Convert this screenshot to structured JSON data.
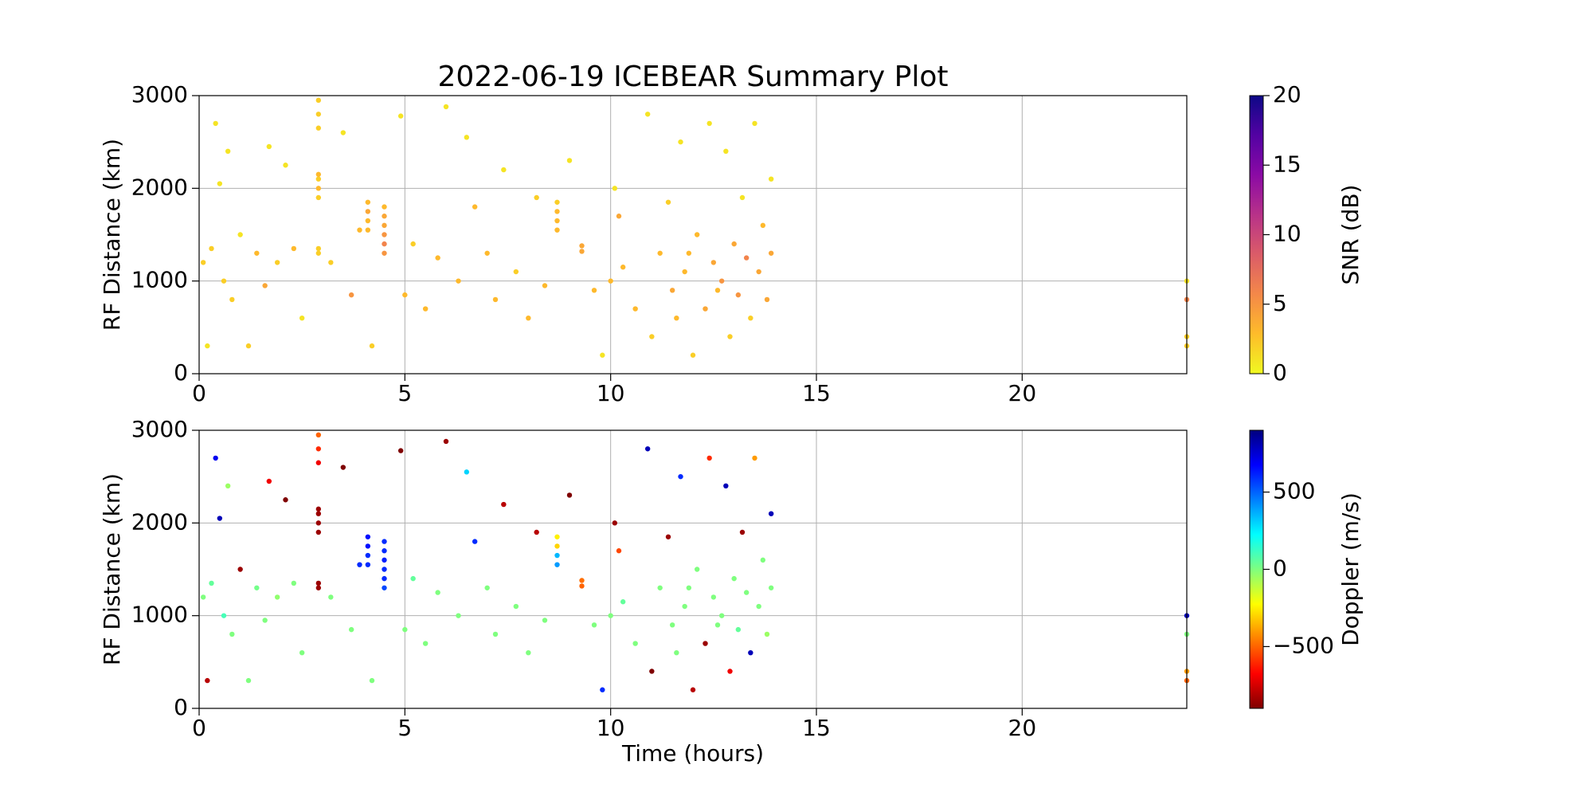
{
  "chart_data": [
    {
      "type": "scatter",
      "title": "2022-06-19 ICEBEAR Summary Plot",
      "ylabel": "RF Distance (km)",
      "xlim": [
        0,
        24
      ],
      "ylim": [
        0,
        3000
      ],
      "xticks": [
        0,
        5,
        10,
        15,
        20
      ],
      "yticks": [
        0,
        1000,
        2000,
        3000
      ],
      "grid": true,
      "x": [
        0.1,
        0.2,
        0.3,
        0.4,
        0.5,
        0.6,
        0.7,
        0.8,
        1.0,
        1.2,
        1.4,
        1.6,
        1.7,
        1.9,
        2.1,
        2.3,
        2.5,
        2.9,
        2.9,
        2.9,
        2.9,
        2.9,
        2.9,
        2.9,
        2.9,
        2.9,
        3.2,
        3.5,
        3.7,
        3.9,
        4.1,
        4.1,
        4.1,
        4.1,
        4.5,
        4.5,
        4.5,
        4.5,
        4.5,
        4.5,
        4.2,
        4.9,
        5.0,
        5.2,
        5.5,
        5.8,
        6.0,
        6.3,
        6.5,
        6.7,
        7.0,
        7.2,
        7.4,
        7.7,
        8.0,
        8.2,
        8.4,
        8.7,
        8.7,
        8.7,
        8.7,
        9.0,
        9.3,
        9.3,
        9.6,
        9.8,
        10.0,
        10.1,
        10.2,
        10.3,
        10.6,
        10.9,
        11.0,
        11.2,
        11.4,
        11.5,
        11.7,
        11.8,
        12.0,
        12.1,
        12.3,
        12.4,
        12.5,
        12.7,
        12.8,
        12.9,
        13.0,
        13.1,
        13.2,
        13.3,
        13.4,
        13.5,
        13.6,
        13.7,
        13.8,
        13.9,
        13.9,
        11.9,
        12.6,
        11.6,
        24.0,
        24.0,
        24.0,
        24.0
      ],
      "y": [
        1200,
        300,
        1350,
        2700,
        2050,
        1000,
        2400,
        800,
        1500,
        300,
        1300,
        950,
        2450,
        1200,
        2250,
        1350,
        600,
        1300,
        1350,
        1900,
        2000,
        2100,
        2150,
        2650,
        2800,
        2950,
        1200,
        2600,
        850,
        1550,
        1550,
        1650,
        1750,
        1850,
        1300,
        1400,
        1500,
        1600,
        1700,
        1800,
        300,
        2780,
        850,
        1400,
        700,
        1250,
        2880,
        1000,
        2550,
        1800,
        1300,
        800,
        2200,
        1100,
        600,
        1900,
        950,
        1550,
        1650,
        1750,
        1850,
        2300,
        1320,
        1380,
        900,
        200,
        1000,
        2000,
        1700,
        1150,
        700,
        2800,
        400,
        1300,
        1850,
        900,
        2500,
        1100,
        200,
        1500,
        700,
        2700,
        1200,
        1000,
        2400,
        400,
        1400,
        850,
        1900,
        1250,
        600,
        2700,
        1100,
        1600,
        800,
        1300,
        2100,
        1300,
        900,
        600,
        300,
        400,
        800,
        1000
      ],
      "colors": [
        2,
        1,
        2,
        1,
        1,
        2,
        1,
        2,
        1,
        2,
        3,
        4,
        1,
        2,
        1,
        3,
        1,
        2,
        2,
        2,
        3,
        2,
        3,
        2,
        2,
        2,
        2,
        1,
        5,
        3,
        3,
        3,
        4,
        3,
        5,
        6,
        5,
        4,
        4,
        3,
        2,
        1,
        3,
        2,
        3,
        3,
        1,
        3,
        1,
        3,
        3,
        3,
        1,
        2,
        3,
        2,
        3,
        3,
        3,
        3,
        2,
        1,
        4,
        4,
        3,
        1,
        3,
        1,
        4,
        3,
        3,
        1,
        2,
        3,
        2,
        4,
        1,
        3,
        2,
        3,
        4,
        1,
        4,
        5,
        1,
        2,
        4,
        5,
        1,
        6,
        2,
        1,
        4,
        3,
        4,
        4,
        1,
        3,
        3,
        3,
        2,
        2,
        6,
        1
      ],
      "colorbar": {
        "label": "SNR (dB)",
        "colormap": "plasma_r",
        "lim": [
          0,
          20
        ],
        "ticks": [
          0,
          5,
          10,
          15,
          20
        ]
      }
    },
    {
      "type": "scatter",
      "ylabel": "RF Distance (km)",
      "xlabel": "Time (hours)",
      "xlim": [
        0,
        24
      ],
      "ylim": [
        0,
        3000
      ],
      "xticks": [
        0,
        5,
        10,
        15,
        20
      ],
      "yticks": [
        0,
        1000,
        2000,
        3000
      ],
      "grid": true,
      "x": [
        0.1,
        0.2,
        0.3,
        0.4,
        0.5,
        0.6,
        0.7,
        0.8,
        1.0,
        1.2,
        1.4,
        1.6,
        1.7,
        1.9,
        2.1,
        2.3,
        2.5,
        2.9,
        2.9,
        2.9,
        2.9,
        2.9,
        2.9,
        2.9,
        2.9,
        2.9,
        3.2,
        3.5,
        3.7,
        3.9,
        4.1,
        4.1,
        4.1,
        4.1,
        4.5,
        4.5,
        4.5,
        4.5,
        4.5,
        4.5,
        4.2,
        4.9,
        5.0,
        5.2,
        5.5,
        5.8,
        6.0,
        6.3,
        6.5,
        6.7,
        7.0,
        7.2,
        7.4,
        7.7,
        8.0,
        8.2,
        8.4,
        8.7,
        8.7,
        8.7,
        8.7,
        9.0,
        9.3,
        9.3,
        9.6,
        9.8,
        10.0,
        10.1,
        10.2,
        10.3,
        10.6,
        10.9,
        11.0,
        11.2,
        11.4,
        11.5,
        11.7,
        11.8,
        12.0,
        12.1,
        12.3,
        12.4,
        12.5,
        12.7,
        12.8,
        12.9,
        13.0,
        13.1,
        13.2,
        13.3,
        13.4,
        13.5,
        13.6,
        13.7,
        13.8,
        13.9,
        13.9,
        11.9,
        12.6,
        11.6,
        24.0,
        24.0,
        24.0,
        24.0
      ],
      "y": [
        1200,
        300,
        1350,
        2700,
        2050,
        1000,
        2400,
        800,
        1500,
        300,
        1300,
        950,
        2450,
        1200,
        2250,
        1350,
        600,
        1300,
        1350,
        1900,
        2000,
        2100,
        2150,
        2650,
        2800,
        2950,
        1200,
        2600,
        850,
        1550,
        1550,
        1650,
        1750,
        1850,
        1300,
        1400,
        1500,
        1600,
        1700,
        1800,
        300,
        2780,
        850,
        1400,
        700,
        1250,
        2880,
        1000,
        2550,
        1800,
        1300,
        800,
        2200,
        1100,
        600,
        1900,
        950,
        1550,
        1650,
        1750,
        1850,
        2300,
        1320,
        1380,
        900,
        200,
        1000,
        2000,
        1700,
        1150,
        700,
        2800,
        400,
        1300,
        1850,
        900,
        2500,
        1100,
        200,
        1500,
        700,
        2700,
        1200,
        1000,
        2400,
        400,
        1400,
        850,
        1900,
        1250,
        600,
        2700,
        1100,
        1600,
        800,
        1300,
        2100,
        1300,
        900,
        600,
        300,
        400,
        800,
        1000
      ],
      "colors": [
        0,
        -800,
        50,
        700,
        800,
        100,
        -50,
        0,
        -850,
        0,
        20,
        0,
        -700,
        -30,
        -900,
        0,
        0,
        -850,
        -850,
        -850,
        -850,
        -850,
        -850,
        -700,
        -600,
        -500,
        0,
        -900,
        0,
        600,
        600,
        600,
        650,
        650,
        550,
        600,
        600,
        620,
        600,
        600,
        0,
        -900,
        0,
        50,
        0,
        0,
        -850,
        0,
        300,
        600,
        0,
        0,
        -800,
        0,
        0,
        -800,
        0,
        400,
        350,
        -300,
        -250,
        -900,
        -500,
        -480,
        0,
        600,
        0,
        -850,
        -550,
        50,
        0,
        800,
        -900,
        0,
        -850,
        0,
        600,
        0,
        -800,
        0,
        -850,
        -600,
        0,
        0,
        800,
        -700,
        0,
        50,
        -850,
        0,
        800,
        -400,
        0,
        0,
        -50,
        0,
        800,
        0,
        0,
        0,
        -500,
        -400,
        0,
        800
      ],
      "colorbar": {
        "label": "Doppler (m/s)",
        "colormap": "jet_r",
        "lim": [
          -900,
          900
        ],
        "ticks": [
          {
            "value": -500,
            "label": "−500"
          },
          0,
          500
        ]
      }
    }
  ]
}
